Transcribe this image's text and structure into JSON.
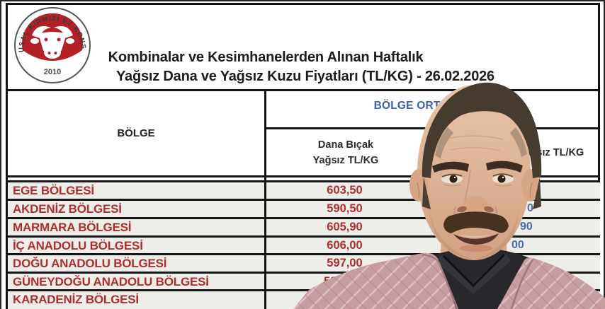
{
  "logo": {
    "ring_text": "ULUSAL KIRMIZI ET KONSEYİ",
    "year": "2010",
    "red": "#b32025"
  },
  "title": {
    "line1": "Kombinalar ve Kesimhanelerden Alınan Haftalık",
    "line2": "Yağsız Dana ve Yağsız Kuzu Fiyatları (TL/KG) - 26.02.2026"
  },
  "table": {
    "region_header": "BÖLGE",
    "group_header": "BÖLGE ORTALAMASI",
    "dana_header_line1": "Dana Bıçak",
    "dana_header_line2": "Yağsız TL/KG",
    "kuzu_header": "Kuzu Bıçak Yağsız TL/KG",
    "rows": [
      {
        "region": "EGE BÖLGESİ",
        "dana": "603,50",
        "dana_partial": false,
        "kuzu_visible": ""
      },
      {
        "region": "AKDENİZ BÖLGESİ",
        "dana": "590,50",
        "dana_partial": false,
        "kuzu_visible": "0"
      },
      {
        "region": "MARMARA BÖLGESİ",
        "dana": "605,90",
        "dana_partial": false,
        "kuzu_visible": "90"
      },
      {
        "region": "İÇ ANADOLU BÖLGESİ",
        "dana": "606,00",
        "dana_partial": false,
        "kuzu_visible": "00"
      },
      {
        "region": "DOĞU ANADOLU BÖLGESİ",
        "dana": "597,00",
        "dana_partial": false,
        "kuzu_visible": ""
      },
      {
        "region": "GÜNEYDOĞU ANADOLU BÖLGESİ",
        "dana": "59",
        "dana_partial": true,
        "kuzu_visible": ""
      },
      {
        "region": "KARADENİZ BÖLGESİ",
        "dana": "",
        "dana_partial": false,
        "kuzu_visible": ""
      }
    ]
  },
  "colors": {
    "region_text": "#ae2e2e",
    "value_text": "#ae2e2e",
    "group_header_text": "#3e5fa3",
    "kuzu_value_text": "#4a6da8",
    "grid": "#141414",
    "row_fill": "#ededea"
  }
}
